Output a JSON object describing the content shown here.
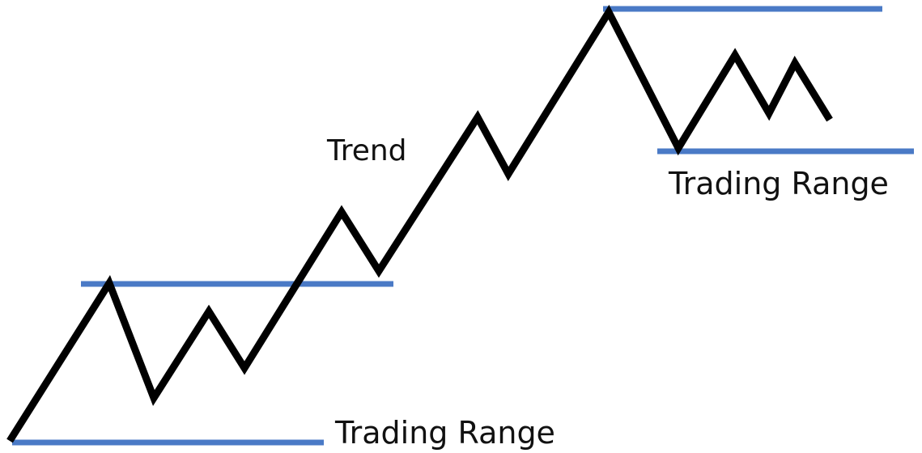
{
  "labels": {
    "trend": "Trend",
    "upper_range": "Trading Range",
    "lower_range": "Trading Range"
  }
}
